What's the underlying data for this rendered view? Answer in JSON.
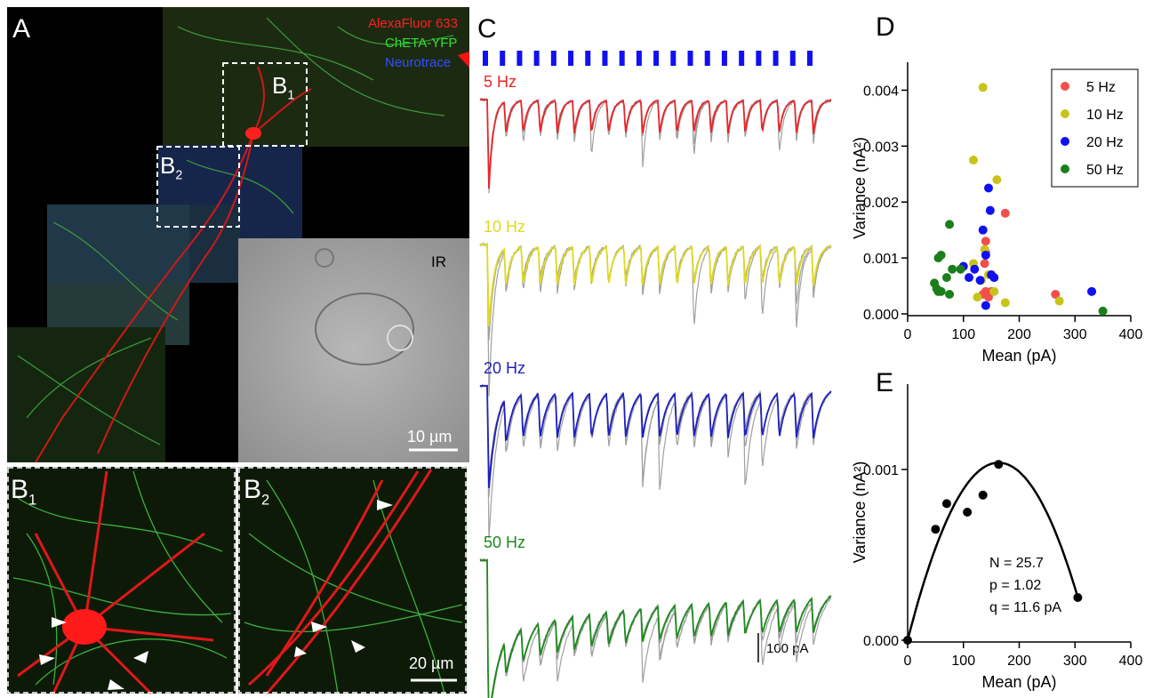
{
  "figure": {
    "panel_a": {
      "label": "A",
      "legend": [
        {
          "text": "AlexaFluor 633",
          "color": "#ff2020"
        },
        {
          "text": "ChETA-YFP",
          "color": "#30e030"
        },
        {
          "text": "Neurotrace",
          "color": "#3050ff"
        }
      ],
      "box_labels": [
        {
          "main": "B",
          "sub": "1"
        },
        {
          "main": "B",
          "sub": "2"
        }
      ],
      "inset_label": "IR",
      "scale_bar": "10 µm"
    },
    "panel_b1": {
      "label": {
        "main": "B",
        "sub": "1"
      }
    },
    "panel_b2": {
      "label": {
        "main": "B",
        "sub": "2"
      },
      "scale_bar": "20 µm"
    },
    "panel_c": {
      "label": "C",
      "traces": [
        {
          "label": "5 Hz",
          "color": "#e8262b"
        },
        {
          "label": "10 Hz",
          "color": "#e0da20"
        },
        {
          "label": "20 Hz",
          "color": "#1f1fc0"
        },
        {
          "label": "50 Hz",
          "color": "#1e8a1e"
        }
      ],
      "scale_bar": "100 pA",
      "stimulus_color": "#1010f0"
    }
  },
  "chart_data": [
    {
      "type": "scatter",
      "panel_label": "D",
      "x_label": "Mean (pA)",
      "y_label": "Variance (nA²)",
      "xlim": [
        0,
        400
      ],
      "xticks": [
        0,
        100,
        200,
        300,
        400
      ],
      "ylim": [
        0,
        0.0045
      ],
      "yticks": [
        {
          "value": 0,
          "label": "0.000"
        },
        {
          "value": 0.001,
          "label": "0.001"
        },
        {
          "value": 0.002,
          "label": "0.002"
        },
        {
          "value": 0.003,
          "label": "0.003"
        },
        {
          "value": 0.004,
          "label": "0.004"
        }
      ],
      "legend": "upper right",
      "series": [
        {
          "name": "5 Hz",
          "color": "#f0504a",
          "x": [
            175,
            140,
            140,
            138,
            140,
            135,
            145,
            150,
            265
          ],
          "values": [
            0.0018,
            0.0013,
            0.0011,
            0.0009,
            0.0004,
            0.00035,
            0.0003,
            0.0004,
            0.00035
          ]
        },
        {
          "name": "10 Hz",
          "color": "#c8c31a",
          "x": [
            135,
            118,
            160,
            138,
            118,
            145,
            125,
            155,
            175,
            272,
            132
          ],
          "values": [
            0.00405,
            0.00275,
            0.0024,
            0.00115,
            0.0009,
            0.0007,
            0.0003,
            0.0004,
            0.0002,
            0.00023,
            0.0006
          ]
        },
        {
          "name": "20 Hz",
          "color": "#1010f0",
          "x": [
            145,
            148,
            135,
            140,
            100,
            120,
            110,
            130,
            150,
            155,
            140,
            330
          ],
          "values": [
            0.00225,
            0.00185,
            0.0015,
            0.00105,
            0.00085,
            0.0008,
            0.00065,
            0.0006,
            0.0007,
            0.00065,
            0.00015,
            0.0004
          ]
        },
        {
          "name": "50 Hz",
          "color": "#1a7f1a",
          "x": [
            75,
            60,
            55,
            80,
            70,
            95,
            48,
            52,
            55,
            75,
            60,
            350
          ],
          "values": [
            0.0016,
            0.00105,
            0.001,
            0.0008,
            0.00065,
            0.0008,
            0.00055,
            0.00045,
            0.0004,
            0.00035,
            0.0004,
            5e-05
          ]
        }
      ]
    },
    {
      "type": "scatter",
      "panel_label": "E",
      "x_label": "Mean (pA)",
      "y_label": "Variance (nA²)",
      "xlim": [
        0,
        400
      ],
      "xticks": [
        0,
        100,
        200,
        300,
        400
      ],
      "ylim": [
        0,
        0.0015
      ],
      "yticks": [
        {
          "value": 0,
          "label": "0.000"
        },
        {
          "value": 0.001,
          "label": "0.001"
        }
      ],
      "series": [
        {
          "color": "#000000",
          "x": [
            0,
            50,
            70,
            107,
            135,
            163,
            305
          ],
          "values": [
            0,
            0.00065,
            0.0008,
            0.00075,
            0.00085,
            0.00103,
            0.00025
          ]
        }
      ],
      "annotations": [
        "N = 25.7",
        "p = 1.02",
        "q = 11.6 pA"
      ]
    }
  ]
}
